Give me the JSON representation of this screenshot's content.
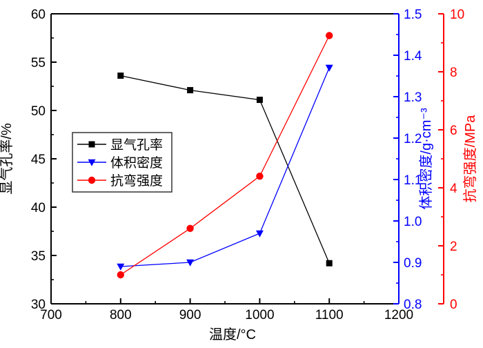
{
  "chart_data": {
    "type": "line",
    "x": [
      800,
      900,
      1000,
      1100
    ],
    "x_axis": {
      "label": "温度/°C",
      "min": 700,
      "max": 1200,
      "major_ticks": [
        700,
        800,
        900,
        1000,
        1100,
        1200
      ],
      "tick_labels": [
        "700",
        "800",
        "900",
        "1000",
        "1100",
        "1200"
      ],
      "minor_step": 50,
      "major_step": 100
    },
    "axes": {
      "left": {
        "label": "显气孔率/%",
        "min": 30,
        "max": 60,
        "major_ticks": [
          30,
          35,
          40,
          45,
          50,
          55,
          60
        ],
        "tick_labels": [
          "30",
          "35",
          "40",
          "45",
          "50",
          "55",
          "60"
        ],
        "minor_step": 2.5,
        "major_step": 5,
        "color": "#000000"
      },
      "right": {
        "label": "体积密度/g·cm⁻³",
        "min": 0.8,
        "max": 1.5,
        "major_ticks": [
          0.8,
          0.9,
          1.0,
          1.1,
          1.2,
          1.3,
          1.4,
          1.5
        ],
        "tick_labels": [
          "0.8",
          "0.9",
          "1.0",
          "1.1",
          "1.2",
          "1.3",
          "1.4",
          "1.5"
        ],
        "minor_step": 0.05,
        "major_step": 0.1,
        "color": "#0000ff"
      },
      "far_right": {
        "label": "抗弯强度/MPa",
        "min": 0,
        "max": 10,
        "major_ticks": [
          0,
          2,
          4,
          6,
          8,
          10
        ],
        "tick_labels": [
          "0",
          "2",
          "4",
          "6",
          "8",
          "10"
        ],
        "minor_step": 1,
        "major_step": 2,
        "color": "#ff0000"
      }
    },
    "series": [
      {
        "key": "apparent-porosity",
        "name": "显气孔率",
        "axis": "left",
        "color": "#000000",
        "marker": "square",
        "values": [
          53.6,
          52.1,
          51.1,
          34.2
        ]
      },
      {
        "key": "bulk-density",
        "name": "体积密度",
        "axis": "right",
        "color": "#0000ff",
        "marker": "triangle-down",
        "values": [
          0.89,
          0.9,
          0.97,
          1.37
        ]
      },
      {
        "key": "flexural-strength",
        "name": "抗弯强度",
        "axis": "far_right",
        "color": "#ff0000",
        "marker": "circle",
        "values": [
          1.0,
          2.6,
          4.4,
          9.25
        ]
      }
    ],
    "legend": {
      "position": "inside-left",
      "entries": [
        "显气孔率",
        "体积密度",
        "抗弯强度"
      ]
    },
    "grid": false,
    "title": ""
  }
}
